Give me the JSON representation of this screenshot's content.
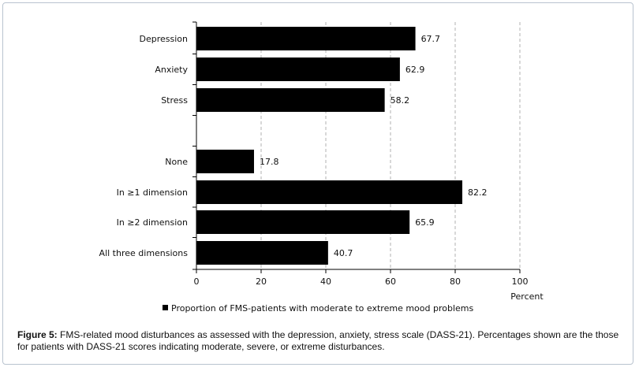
{
  "chart_data": {
    "type": "bar",
    "orientation": "horizontal",
    "categories": [
      "Depression",
      "Anxiety",
      "Stress",
      "None",
      "In ≥1 dimension",
      "In ≥2 dimension",
      "All three dimensions"
    ],
    "values": [
      67.7,
      62.9,
      58.2,
      17.8,
      82.2,
      65.9,
      40.7
    ],
    "value_labels": [
      "67.7",
      "62.9",
      "58.2",
      "17.8",
      "82.2",
      "65.9",
      "40.7"
    ],
    "title": "",
    "xlabel": "Percent",
    "ylabel": "",
    "xlim": [
      0,
      100
    ],
    "xticks": [
      "0",
      "20",
      "40",
      "60",
      "80",
      "100"
    ],
    "gridlines": "vertical dashed at each tick",
    "legend": {
      "position": "bottom",
      "entries": [
        "Proportion of FMS-patients with moderate to extreme mood problems"
      ]
    },
    "colors": {
      "bar": "#000000",
      "grid": "#b0b0b0",
      "axis": "#000000"
    }
  },
  "caption": {
    "label": "Figure 5:",
    "text": " FMS-related mood disturbances as assessed with the depression, anxiety, stress scale (DASS-21). Percentages shown are the those for patients with DASS-21 scores indicating moderate, severe, or extreme disturbances."
  }
}
